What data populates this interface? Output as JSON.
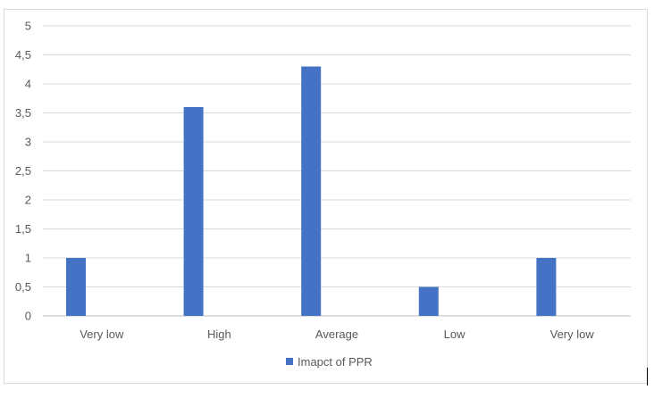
{
  "chart_data": {
    "type": "bar",
    "categories": [
      "Very low",
      "High",
      "Average",
      "Low",
      "Very low"
    ],
    "series": [
      {
        "name": "Imapct of PPR",
        "values": [
          1,
          3.6,
          4.3,
          0.5,
          1
        ],
        "color": "#4472c4"
      }
    ],
    "ylim": [
      0,
      5
    ],
    "yticks": [
      "0",
      "0,5",
      "1",
      "1,5",
      "2",
      "2,5",
      "3",
      "3,5",
      "4",
      "4,5",
      "5"
    ],
    "grid": true,
    "legend_position": "bottom",
    "title": "",
    "xlabel": "",
    "ylabel": ""
  }
}
